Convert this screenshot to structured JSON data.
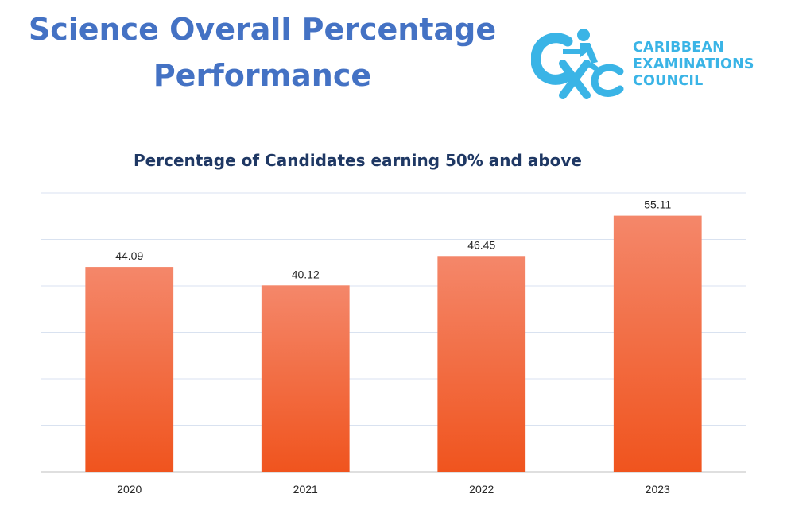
{
  "slide": {
    "title_line1": "Science Overall Percentage",
    "title_line2": "Performance"
  },
  "logo": {
    "line1": "CARIBBEAN",
    "line2": "EXAMINATIONS",
    "line3": "COUNCIL",
    "color": "#3ab4e6",
    "icon": "cxc-logo-icon"
  },
  "chart_data": {
    "type": "bar",
    "title": "Percentage of Candidates earning 50% and above",
    "categories": [
      "2020",
      "2021",
      "2022",
      "2023"
    ],
    "values": [
      44.09,
      40.12,
      46.45,
      55.11
    ],
    "value_labels": [
      "44.09",
      "40.12",
      "46.45",
      "55.11"
    ],
    "xlabel": "",
    "ylabel": "",
    "ylim": [
      0,
      60
    ],
    "grid": true,
    "bar_color_top": "#f4876a",
    "bar_color_bottom": "#f0541e",
    "title_color": "#4472c4"
  }
}
